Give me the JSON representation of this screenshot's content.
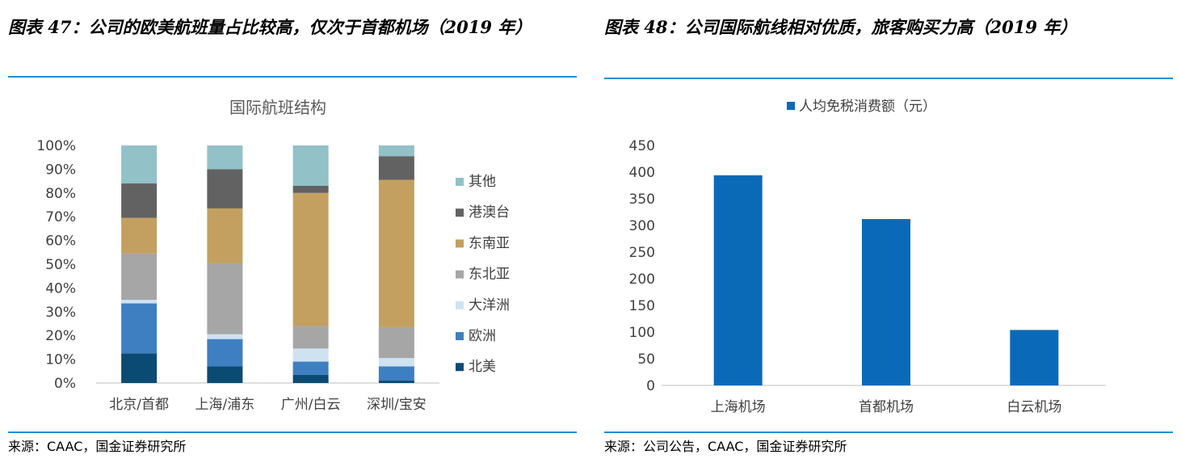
{
  "left_panel": {
    "figure_title": "图表 47：公司的欧美航班量占比较高，仅次于首都机场（2019 年）",
    "source": "来源：CAAC，国金证券研究所"
  },
  "right_panel": {
    "figure_title": "图表 48：公司国际航线相对优质，旅客购买力高（2019 年）",
    "source": "来源：公司公告，CAAC，国金证券研究所"
  },
  "colors": {
    "rule": "#1f8fd6",
    "北美": "#0b4a73",
    "欧洲": "#3e7fc1",
    "大洋洲": "#cfe2f1",
    "东北亚": "#a6a6a6",
    "东南亚": "#c3a05f",
    "港澳台": "#626262",
    "其他": "#92c1c8",
    "bar": "#0b6ab8"
  },
  "chart_data": [
    {
      "type": "bar",
      "stacked": true,
      "title": "国际航班结构",
      "categories": [
        "北京/首都",
        "上海/浦东",
        "广州/白云",
        "深圳/宝安"
      ],
      "series": [
        {
          "name": "北美",
          "values": [
            12.5,
            7,
            3.5,
            1
          ]
        },
        {
          "name": "欧洲",
          "values": [
            21,
            11.5,
            5.5,
            6
          ]
        },
        {
          "name": "大洋洲",
          "values": [
            1.5,
            2,
            5.5,
            3.5
          ]
        },
        {
          "name": "东北亚",
          "values": [
            19.5,
            30,
            9.5,
            13
          ]
        },
        {
          "name": "东南亚",
          "values": [
            15,
            23,
            56,
            62
          ]
        },
        {
          "name": "港澳台",
          "values": [
            14.5,
            16.5,
            3,
            10
          ]
        },
        {
          "name": "其他",
          "values": [
            16,
            10,
            17,
            4.5
          ]
        }
      ],
      "legend_order": [
        "其他",
        "港澳台",
        "东南亚",
        "东北亚",
        "大洋洲",
        "欧洲",
        "北美"
      ],
      "yticks": [
        "0%",
        "10%",
        "20%",
        "30%",
        "40%",
        "50%",
        "60%",
        "70%",
        "80%",
        "90%",
        "100%"
      ],
      "ylim": [
        0,
        100
      ],
      "legend_position": "right"
    },
    {
      "type": "bar",
      "title": "",
      "legend": [
        "人均免税消费额（元）"
      ],
      "categories": [
        "上海机场",
        "首都机场",
        "白云机场"
      ],
      "values": [
        394,
        312,
        104
      ],
      "yticks": [
        "0",
        "50",
        "100",
        "150",
        "200",
        "250",
        "300",
        "350",
        "400",
        "450"
      ],
      "ylim": [
        0,
        450
      ],
      "legend_position": "top"
    }
  ]
}
